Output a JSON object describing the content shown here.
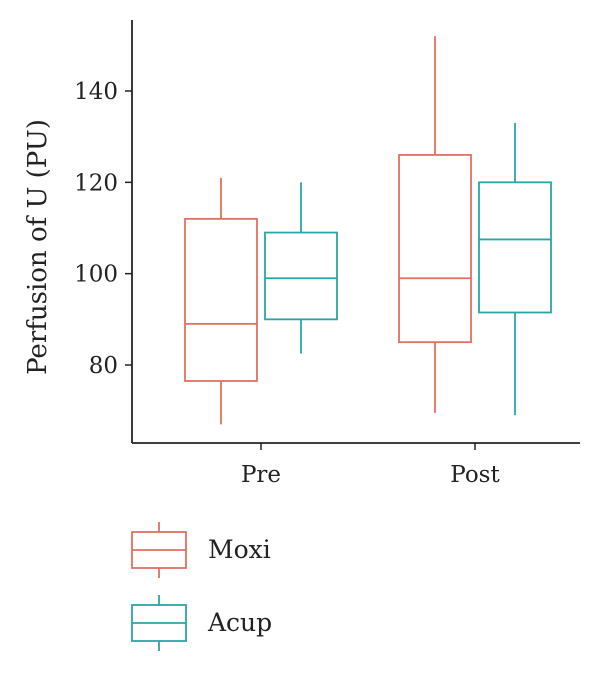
{
  "chart_data": {
    "type": "box",
    "title": "",
    "xlabel": "",
    "ylabel": "Perfusion of U (PU)",
    "categories": [
      "Pre",
      "Post"
    ],
    "ylim": [
      62,
      157
    ],
    "yticks": [
      80,
      100,
      120,
      140
    ],
    "grid": false,
    "legend_position": "bottom-left",
    "series": [
      {
        "name": "Moxi",
        "color": "#E07060",
        "boxes": [
          {
            "category": "Pre",
            "min": 67,
            "q1": 76.5,
            "median": 89,
            "q3": 112,
            "max": 121
          },
          {
            "category": "Post",
            "min": 69.5,
            "q1": 85,
            "median": 99,
            "q3": 126,
            "max": 152
          }
        ]
      },
      {
        "name": "Acup",
        "color": "#2AA5A5",
        "boxes": [
          {
            "category": "Pre",
            "min": 82.5,
            "q1": 90,
            "median": 99,
            "q3": 109,
            "max": 120
          },
          {
            "category": "Post",
            "min": 69,
            "q1": 91.5,
            "median": 107.5,
            "q3": 120,
            "max": 133
          }
        ]
      }
    ]
  }
}
